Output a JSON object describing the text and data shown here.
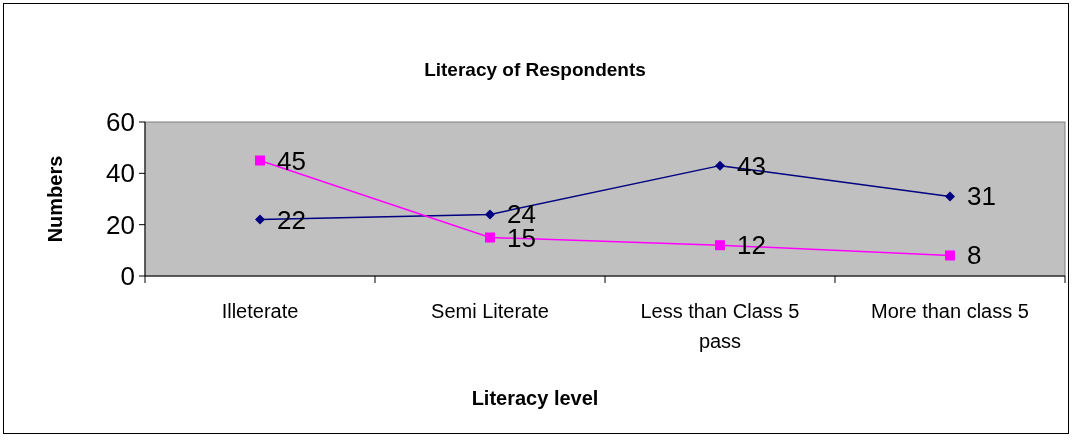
{
  "chart_data": {
    "type": "line",
    "title": "Literacy of Respondents",
    "xlabel": "Literacy level",
    "ylabel": "Numbers",
    "categories": [
      "Illeterate",
      "Semi Literate",
      "Less than Class 5 pass",
      "More than class 5"
    ],
    "series": [
      {
        "color": "#000080",
        "marker": "diamond",
        "values": [
          22,
          24,
          43,
          31
        ]
      },
      {
        "color": "#ff00ff",
        "marker": "square",
        "values": [
          45,
          15,
          12,
          8
        ]
      }
    ],
    "ylim": [
      0,
      60
    ],
    "yticks": [
      0,
      20,
      40,
      60
    ],
    "data_labels": true
  }
}
